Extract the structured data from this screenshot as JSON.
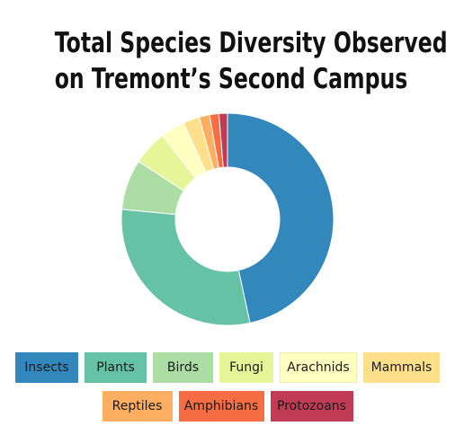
{
  "title": {
    "line1": "Total Species Diversity Observed",
    "line2": "on Tremont’s Second Campus"
  },
  "chart_data": {
    "type": "pie",
    "variant": "donut",
    "title": "Total Species Diversity Observed on Tremont’s Second Campus",
    "legend_position": "bottom",
    "categories": [
      "Insects",
      "Plants",
      "Birds",
      "Fungi",
      "Arachnids",
      "Mammals",
      "Reptiles",
      "Amphibians",
      "Protozoans"
    ],
    "values": [
      46.6,
      29.9,
      7.7,
      5.3,
      3.7,
      2.5,
      1.6,
      1.4,
      1.3
    ],
    "colors": [
      "#3288bd",
      "#66c2a5",
      "#abdda4",
      "#e6f598",
      "#ffffbf",
      "#fee08b",
      "#fdae61",
      "#f46d43",
      "#c23b55"
    ]
  }
}
